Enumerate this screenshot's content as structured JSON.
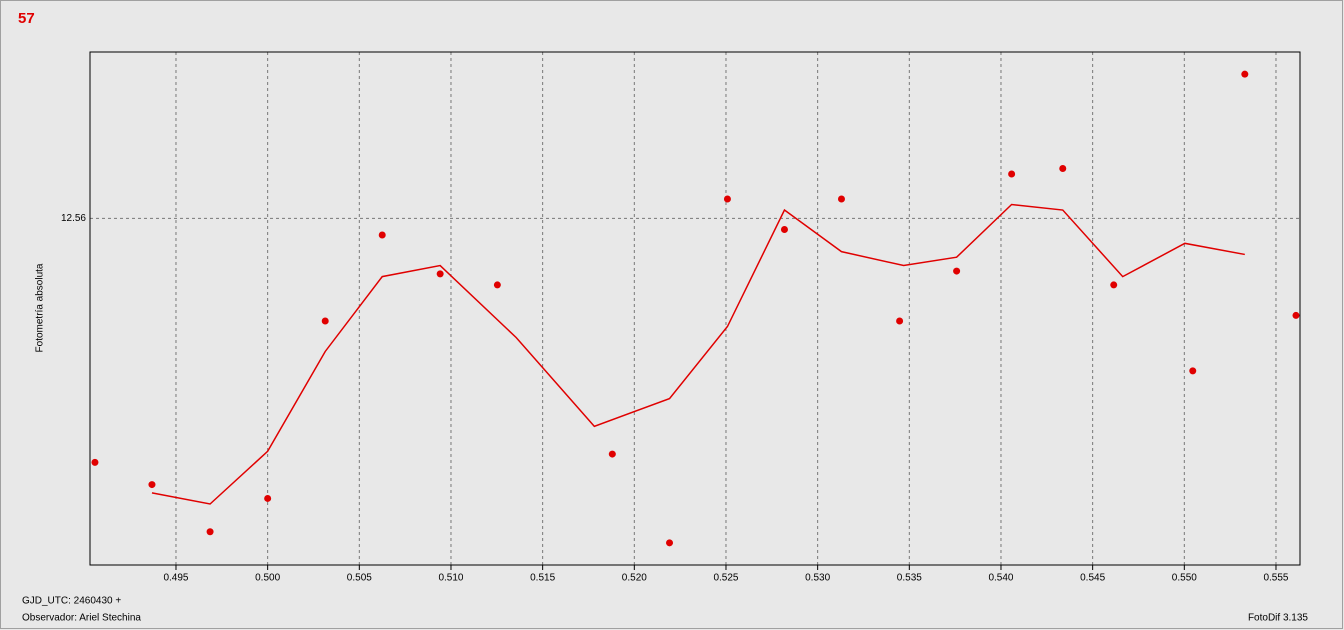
{
  "chart_data": {
    "type": "scatter",
    "title": "57",
    "y_label": "Fotometría absoluta",
    "footer_left": [
      "GJD_UTC: 2460430 +",
      "Observador: Ariel Stechina"
    ],
    "footer_right": "FotoDif 3.135",
    "xlim": [
      0.49031,
      0.55631
    ],
    "xticks": [
      0.495,
      {
        "value": 0.5,
        "label": "0.500"
      },
      0.505,
      {
        "value": 0.51,
        "label": "0.510"
      },
      0.515,
      {
        "value": 0.52,
        "label": "0.520"
      },
      0.525,
      {
        "value": 0.53,
        "label": "0.530"
      },
      0.535,
      {
        "value": 0.54,
        "label": "0.540"
      },
      0.545,
      {
        "value": 0.55,
        "label": "0.550"
      },
      0.555
    ],
    "ylim": [
      12.685,
      12.5
    ],
    "yticks": [
      12.56
    ],
    "grid": true,
    "points": {
      "color": "#e00000",
      "x": [
        0.49058,
        0.49369,
        0.49686,
        0.5,
        0.50314,
        0.50625,
        0.50941,
        0.51253,
        0.5188,
        0.52192,
        0.52508,
        0.52819,
        0.5313,
        0.53447,
        0.53758,
        0.54058,
        0.54337,
        0.54615,
        0.55046,
        0.5533,
        0.55609
      ],
      "values": [
        12.648,
        12.656,
        12.673,
        12.661,
        12.597,
        12.566,
        12.58,
        12.584,
        12.645,
        12.677,
        12.553,
        12.564,
        12.553,
        12.597,
        12.579,
        12.544,
        12.542,
        12.584,
        12.615,
        12.508,
        12.595
      ]
    },
    "line": {
      "color": "#e00000",
      "x": [
        0.49369,
        0.49686,
        0.5,
        0.50314,
        0.50625,
        0.50941,
        0.51356,
        0.51782,
        0.52192,
        0.52508,
        0.52819,
        0.5313,
        0.53469,
        0.53758,
        0.54058,
        0.54337,
        0.54664,
        0.55003,
        0.5533
      ],
      "values": [
        12.659,
        12.663,
        12.644,
        12.608,
        12.581,
        12.577,
        12.603,
        12.635,
        12.625,
        12.599,
        12.557,
        12.572,
        12.577,
        12.574,
        12.555,
        12.557,
        12.581,
        12.569,
        12.573
      ]
    }
  }
}
